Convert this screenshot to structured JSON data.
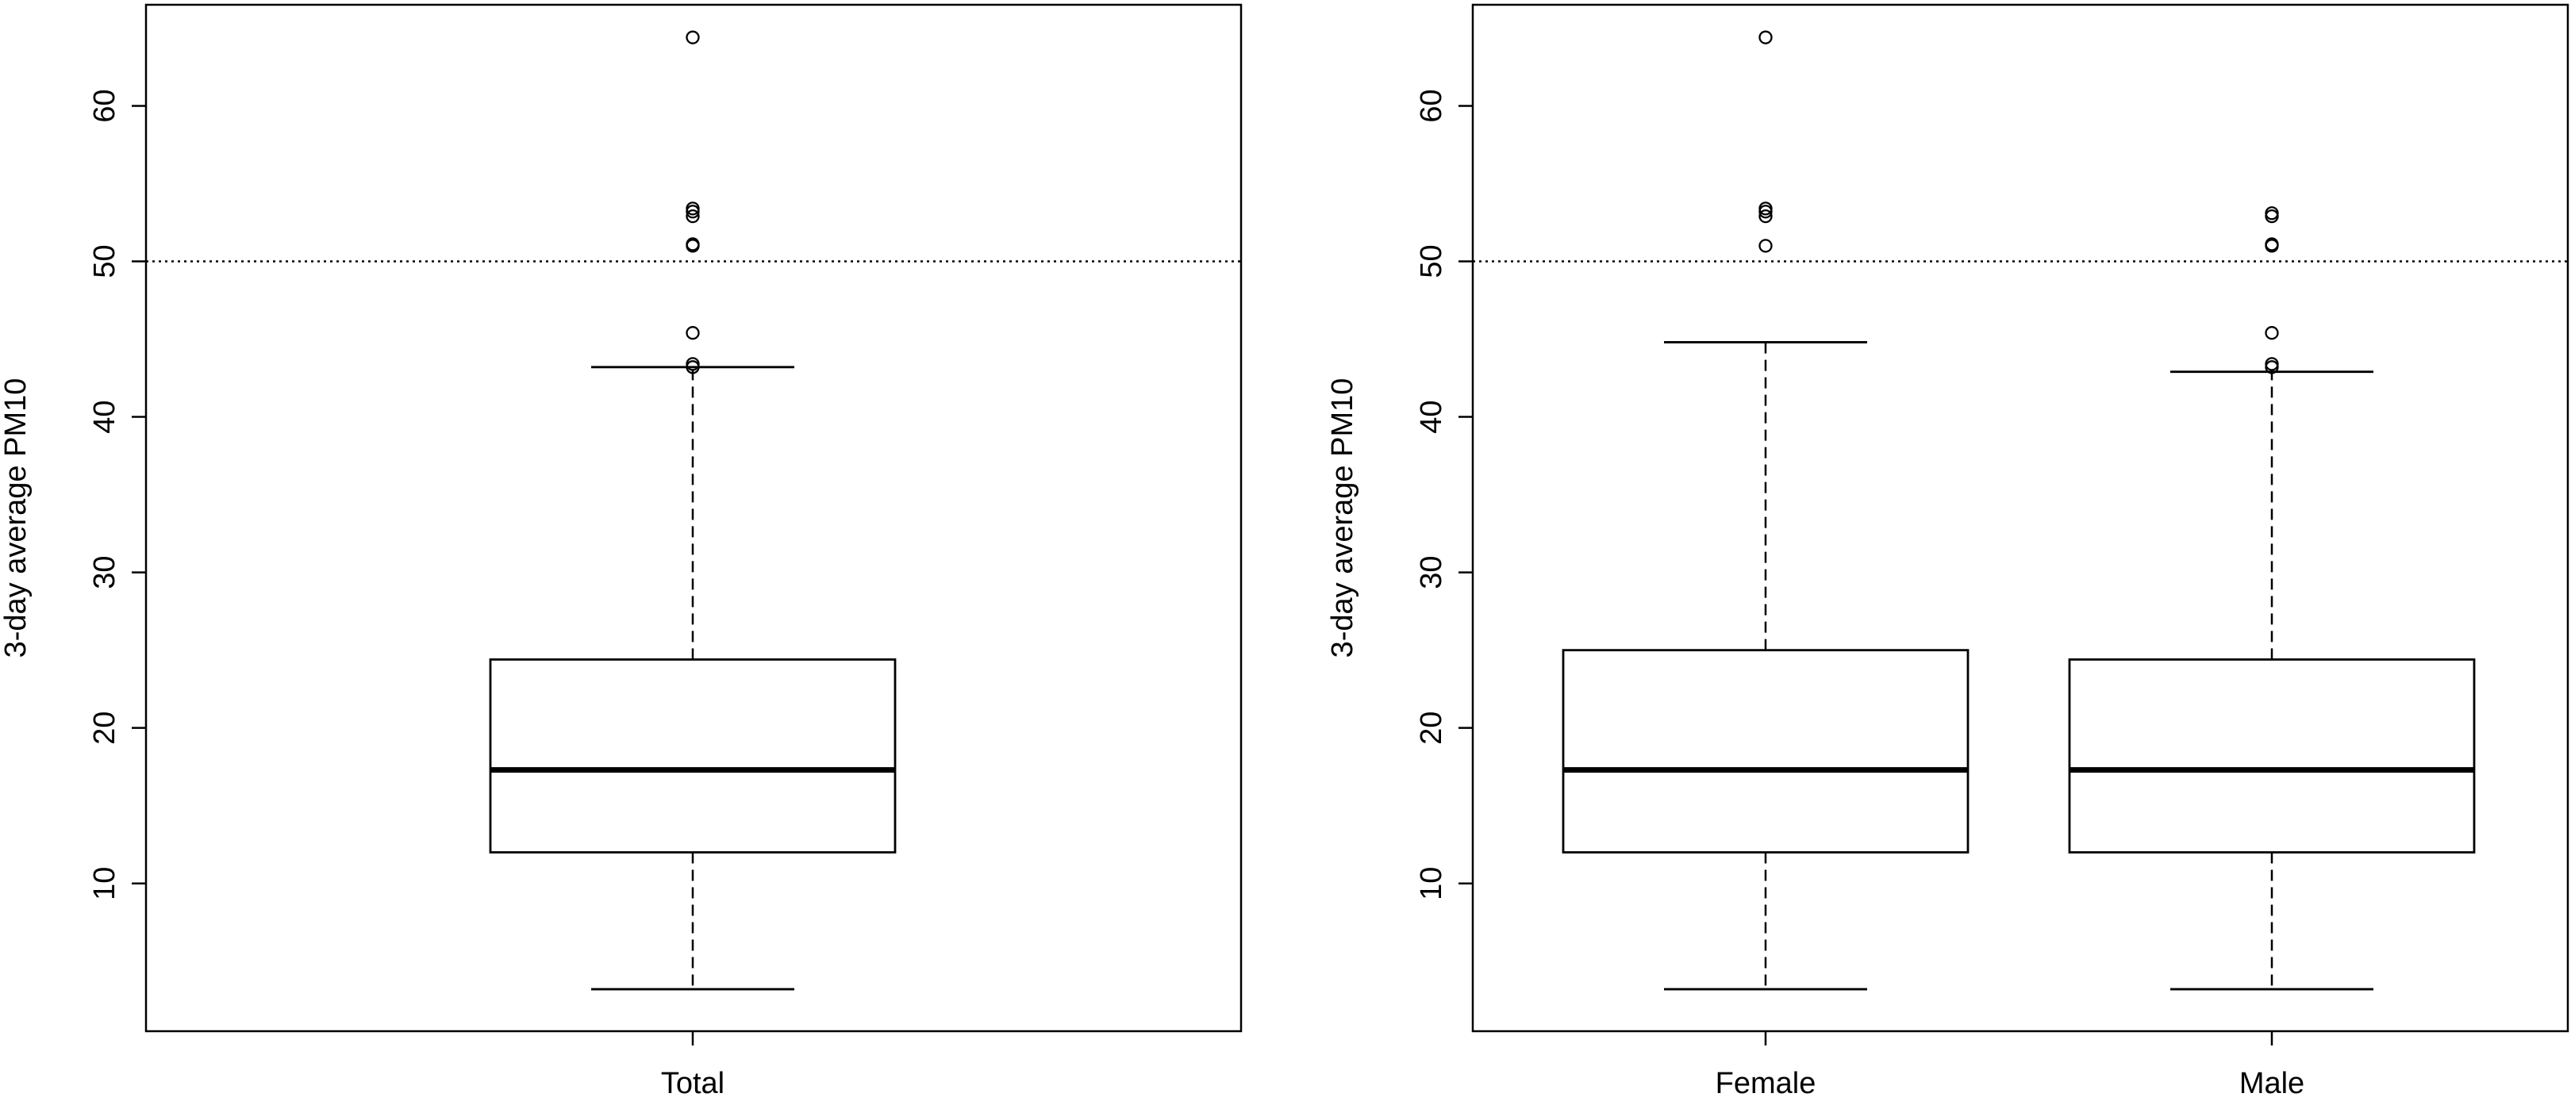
{
  "figure": {
    "threshold_value": 50,
    "threshold_style": "dotted"
  },
  "chart_data": [
    {
      "type": "boxplot",
      "title": "",
      "xlabel": "",
      "ylabel": "3-day average PM10",
      "ylim": [
        0.5,
        66.5
      ],
      "yticks": [
        10,
        20,
        30,
        40,
        50,
        60
      ],
      "grid": false,
      "categories": [
        "Total"
      ],
      "boxes": [
        {
          "label": "Total",
          "whisker_low": 3.2,
          "q1": 12.0,
          "median": 17.3,
          "q3": 24.4,
          "whisker_high": 43.2,
          "outliers": [
            43.2,
            43.4,
            45.4,
            51.0,
            51.1,
            52.9,
            53.2,
            53.4,
            64.4
          ]
        }
      ]
    },
    {
      "type": "boxplot",
      "title": "",
      "xlabel": "",
      "ylabel": "3-day average PM10",
      "ylim": [
        0.5,
        66.5
      ],
      "yticks": [
        10,
        20,
        30,
        40,
        50,
        60
      ],
      "grid": false,
      "categories": [
        "Female",
        "Male"
      ],
      "boxes": [
        {
          "label": "Female",
          "whisker_low": 3.2,
          "q1": 12.0,
          "median": 17.3,
          "q3": 25.0,
          "whisker_high": 44.8,
          "outliers": [
            51.0,
            52.9,
            53.2,
            53.4,
            64.4
          ]
        },
        {
          "label": "Male",
          "whisker_low": 3.2,
          "q1": 12.0,
          "median": 17.3,
          "q3": 24.4,
          "whisker_high": 42.9,
          "outliers": [
            43.2,
            43.4,
            45.4,
            51.0,
            51.1,
            52.9,
            53.1
          ]
        }
      ]
    }
  ]
}
